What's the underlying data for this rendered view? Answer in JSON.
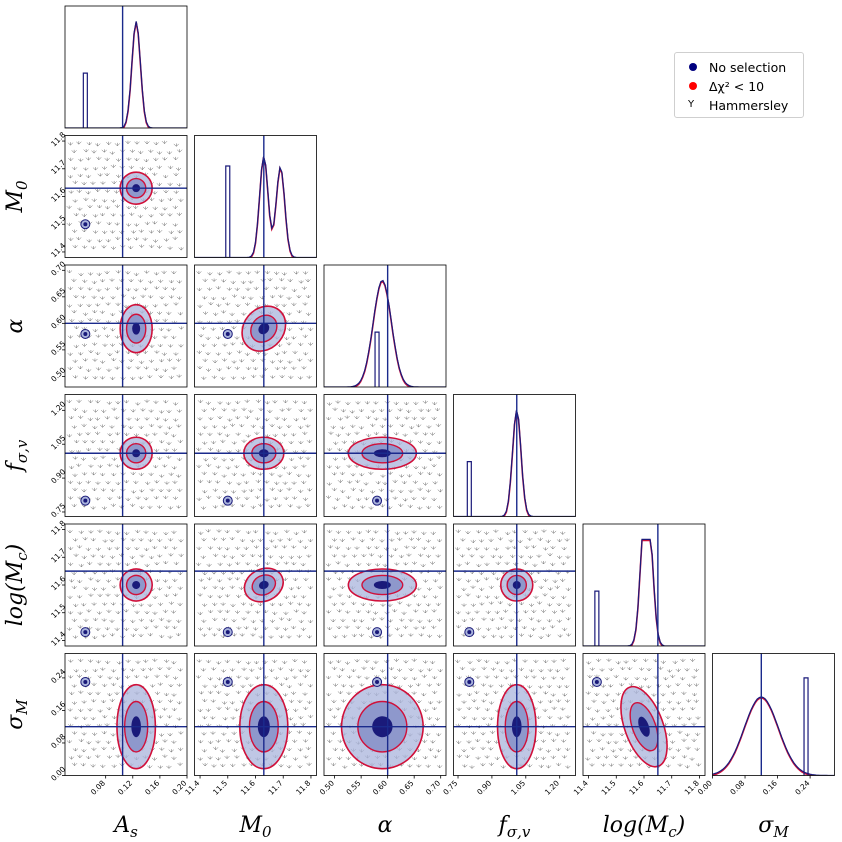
{
  "chart_data": {
    "type": "corner",
    "parameters": [
      {
        "symbol": "A",
        "sub": "s",
        "range": [
          0.02,
          0.2
        ],
        "ticks": [
          "0.08",
          "0.12",
          "0.16",
          "0.20"
        ],
        "truth": 0.105
      },
      {
        "symbol": "M",
        "sub": "0",
        "range": [
          11.38,
          11.82
        ],
        "ticks": [
          "11.4",
          "11.5",
          "11.6",
          "11.7",
          "11.8"
        ],
        "truth": 11.63
      },
      {
        "symbol": "α",
        "sub": "",
        "range": [
          0.48,
          0.71
        ],
        "ticks": [
          "0.50",
          "0.55",
          "0.60",
          "0.65",
          "0.70"
        ],
        "truth": 0.6
      },
      {
        "symbol": "f",
        "sub": "σ,v",
        "range": [
          0.73,
          1.27
        ],
        "ticks": [
          "0.75",
          "0.90",
          "1.05",
          "1.20"
        ],
        "truth": 1.01
      },
      {
        "symbol": "log(M",
        "sub": "c",
        "symbol_suffix": ")",
        "range": [
          11.38,
          11.82
        ],
        "ticks": [
          "11.4",
          "11.5",
          "11.6",
          "11.7",
          "11.8"
        ],
        "truth": 11.65
      },
      {
        "symbol": "σ",
        "sub": "M",
        "range": [
          0.0,
          0.3
        ],
        "ticks": [
          "0.00",
          "0.08",
          "0.16",
          "0.24"
        ],
        "truth": 0.12
      }
    ],
    "posterior_peaks": [
      0.125,
      11.63,
      0.59,
      1.01,
      11.6,
      0.12
    ],
    "selection_peaks": [
      0.05,
      11.5,
      0.58,
      0.8,
      11.43,
      0.23
    ],
    "series": [
      {
        "name": "No selection",
        "color": "#00007f",
        "marker": "circle"
      },
      {
        "name": "Δχ² < 10",
        "color": "#ff0000",
        "marker": "circle"
      },
      {
        "name": "Hammersley",
        "color": "#000000",
        "marker": "tri_down"
      }
    ]
  },
  "legend": {
    "items": [
      {
        "label": "No selection",
        "color": "#00007f"
      },
      {
        "label": "Δχ² < 10",
        "color": "#ff0000"
      },
      {
        "label": "Hammersley",
        "color": "#000000"
      }
    ]
  },
  "colors": {
    "truth_line": "#1a2a8c",
    "fill": "#aab4dc",
    "contour_red": "#d0103a",
    "core": "#1a1a7a"
  }
}
